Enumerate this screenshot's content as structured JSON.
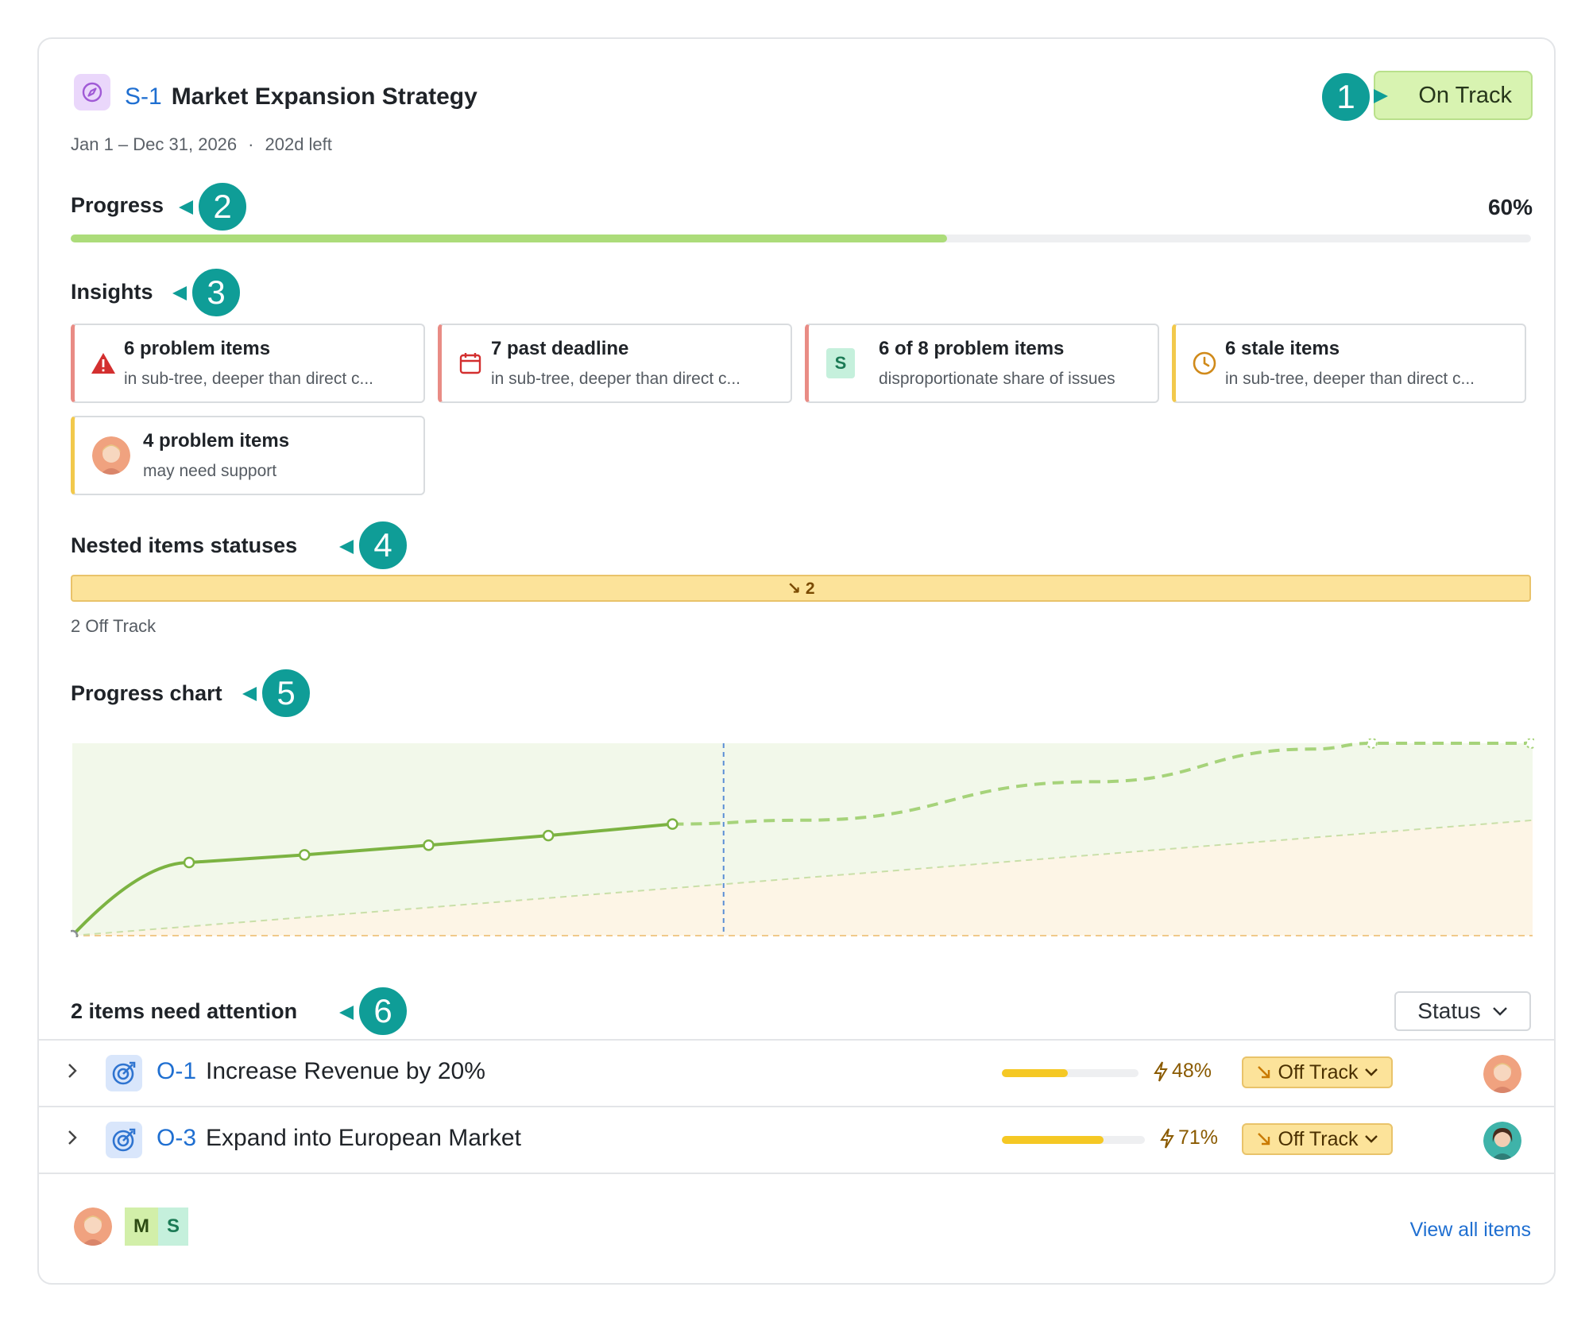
{
  "header": {
    "key": "S-1",
    "title": "Market Expansion Strategy",
    "dates": "Jan 1 – Dec 31, 2026",
    "separator": "·",
    "remaining": "202d left",
    "status": "On Track",
    "icon": "compass-icon"
  },
  "progress": {
    "title": "Progress",
    "percent_label": "60%",
    "value": 0.6,
    "color": "#acdc7a"
  },
  "insights": {
    "title": "Insights",
    "cards": [
      {
        "title": "6 problem items",
        "subtitle": "in sub-tree, deeper than direct c...",
        "icon": "warning-icon",
        "accent": "red"
      },
      {
        "title": "7 past deadline",
        "subtitle": "in sub-tree, deeper than direct c...",
        "icon": "calendar-icon",
        "accent": "red"
      },
      {
        "title": "6 of 8 problem items",
        "subtitle": "disproportionate share of issues",
        "icon": "S",
        "accent": "red"
      },
      {
        "title": "6 stale items",
        "subtitle": "in sub-tree, deeper than direct c...",
        "icon": "clock-icon",
        "accent": "yellow"
      },
      {
        "title": "4 problem items",
        "subtitle": "may need support",
        "icon": "avatar",
        "accent": "yellow"
      }
    ]
  },
  "nested": {
    "title": "Nested items statuses",
    "bar_label": "↘ 2",
    "caption": "2 Off Track",
    "off_track_count": 2
  },
  "chart_title": "Progress chart",
  "chart_data": {
    "type": "line",
    "grid": false,
    "legend": "none",
    "series": [
      {
        "style": "solid",
        "color": "#7cb342",
        "x": [
          0,
          0.08,
          0.159,
          0.244,
          0.326,
          0.411
        ],
        "y": [
          0,
          0.38,
          0.42,
          0.47,
          0.52,
          0.58
        ]
      },
      {
        "style": "dashed",
        "color": "#a6d37a",
        "x": [
          0.411,
          0.5,
          0.7,
          0.85,
          0.89,
          1.0
        ],
        "y": [
          0.58,
          0.6,
          0.8,
          0.97,
          1.0,
          1.0
        ]
      },
      {
        "style": "dashed",
        "color": "#c9dfa8",
        "x": [
          0,
          1.0
        ],
        "y": [
          0,
          0.6
        ]
      }
    ],
    "today_x": 0.446,
    "xlim": [
      0,
      1
    ],
    "ylim": [
      0,
      1
    ]
  },
  "attention": {
    "title": "2 items need attention",
    "dropdown_label": "Status",
    "items": [
      {
        "key": "O-1",
        "title": "Increase Revenue by 20%",
        "percent_label": "48%",
        "value": 0.48,
        "status": "Off Track"
      },
      {
        "key": "O-3",
        "title": "Expand into European Market",
        "percent_label": "71%",
        "value": 0.71,
        "status": "Off Track"
      }
    ]
  },
  "footer": {
    "tiles": [
      "M",
      "S"
    ],
    "link": "View all items"
  },
  "markers": [
    "1",
    "2",
    "3",
    "4",
    "5",
    "6"
  ]
}
